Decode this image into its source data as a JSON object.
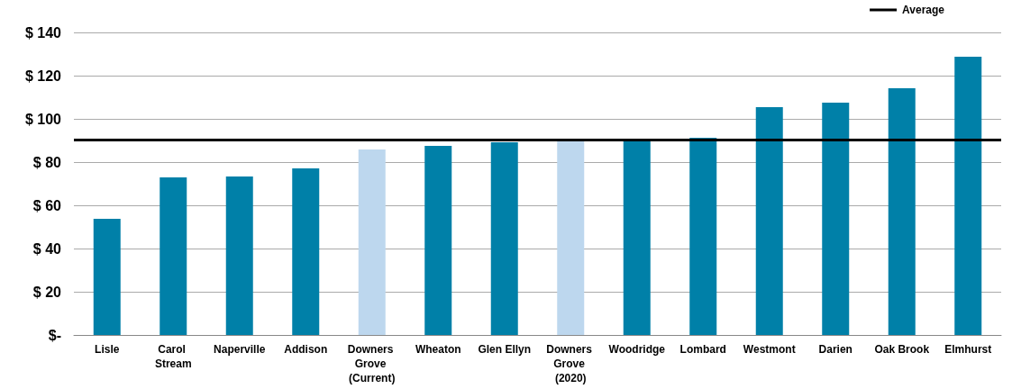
{
  "chart_data": {
    "type": "bar",
    "categories": [
      "Lisle",
      "Carol Stream",
      "Naperville",
      "Addison",
      "Downers Grove (Current)",
      "Wheaton",
      "Glen Ellyn",
      "Downers Grove (2020)",
      "Woodridge",
      "Lombard",
      "Westmont",
      "Darien",
      "Oak Brook",
      "Elmhurst"
    ],
    "values": [
      53.8,
      72.9,
      73.3,
      77.1,
      85.8,
      87.5,
      89.2,
      90.4,
      90.8,
      91.3,
      105.4,
      107.5,
      114.2,
      128.8
    ],
    "colors": [
      "#0080a8",
      "#0080a8",
      "#0080a8",
      "#0080a8",
      "#bdd7ee",
      "#0080a8",
      "#0080a8",
      "#bdd7ee",
      "#0080a8",
      "#0080a8",
      "#0080a8",
      "#0080a8",
      "#0080a8",
      "#0080a8"
    ],
    "ylim": [
      0,
      140
    ],
    "yticks": [
      {
        "value": 0,
        "label": "$-"
      },
      {
        "value": 20,
        "label": "$ 20"
      },
      {
        "value": 40,
        "label": "$ 40"
      },
      {
        "value": 60,
        "label": "$ 60"
      },
      {
        "value": 80,
        "label": "$ 80"
      },
      {
        "value": 100,
        "label": "$ 100"
      },
      {
        "value": 120,
        "label": "$ 120"
      },
      {
        "value": 140,
        "label": "$ 140"
      }
    ],
    "ref_lines": [
      {
        "axis": "y",
        "value": 90.4,
        "label": "Average",
        "color": "#000000",
        "line_style": "solid"
      }
    ],
    "grid": "y",
    "legend": "top right"
  }
}
